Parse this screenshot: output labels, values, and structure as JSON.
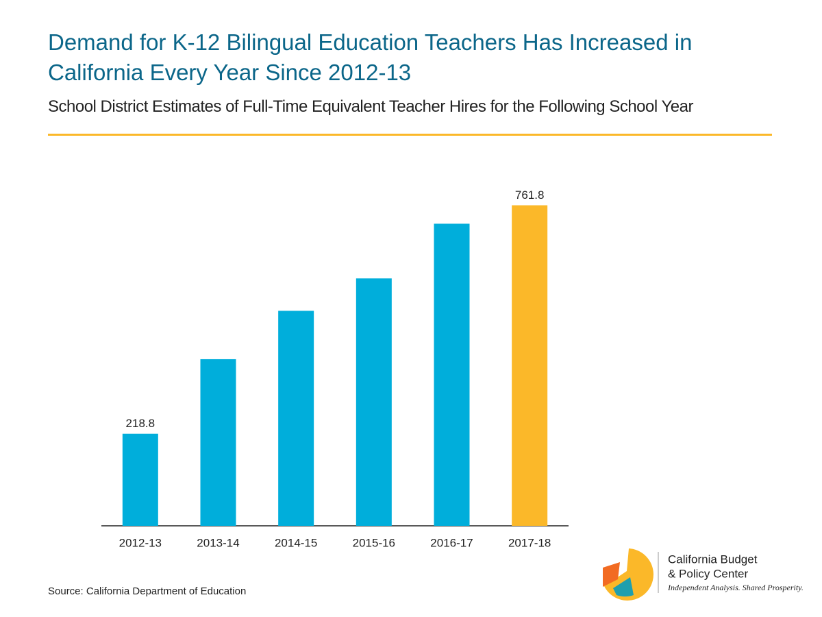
{
  "chart_data": {
    "type": "bar",
    "title": "Demand for K-12 Bilingual Education Teachers Has Increased in California Every Year Since 2012-13",
    "subtitle": "School District Estimates of Full-Time Equivalent Teacher Hires for the Following School Year",
    "categories": [
      "2012-13",
      "2013-14",
      "2014-15",
      "2015-16",
      "2016-17",
      "2017-18"
    ],
    "values": [
      218.8,
      396,
      511,
      588,
      718,
      761.8
    ],
    "value_labels": [
      "218.8",
      null,
      null,
      null,
      null,
      "761.8"
    ],
    "colors": [
      "#00aedb",
      "#00aedb",
      "#00aedb",
      "#00aedb",
      "#00aedb",
      "#fbb829"
    ],
    "ylim": [
      0,
      800
    ],
    "source": "Source: California Department of Education"
  },
  "logo": {
    "name_line1": "California Budget",
    "name_line2": "& Policy Center",
    "tagline": "Independent Analysis. Shared Prosperity."
  }
}
